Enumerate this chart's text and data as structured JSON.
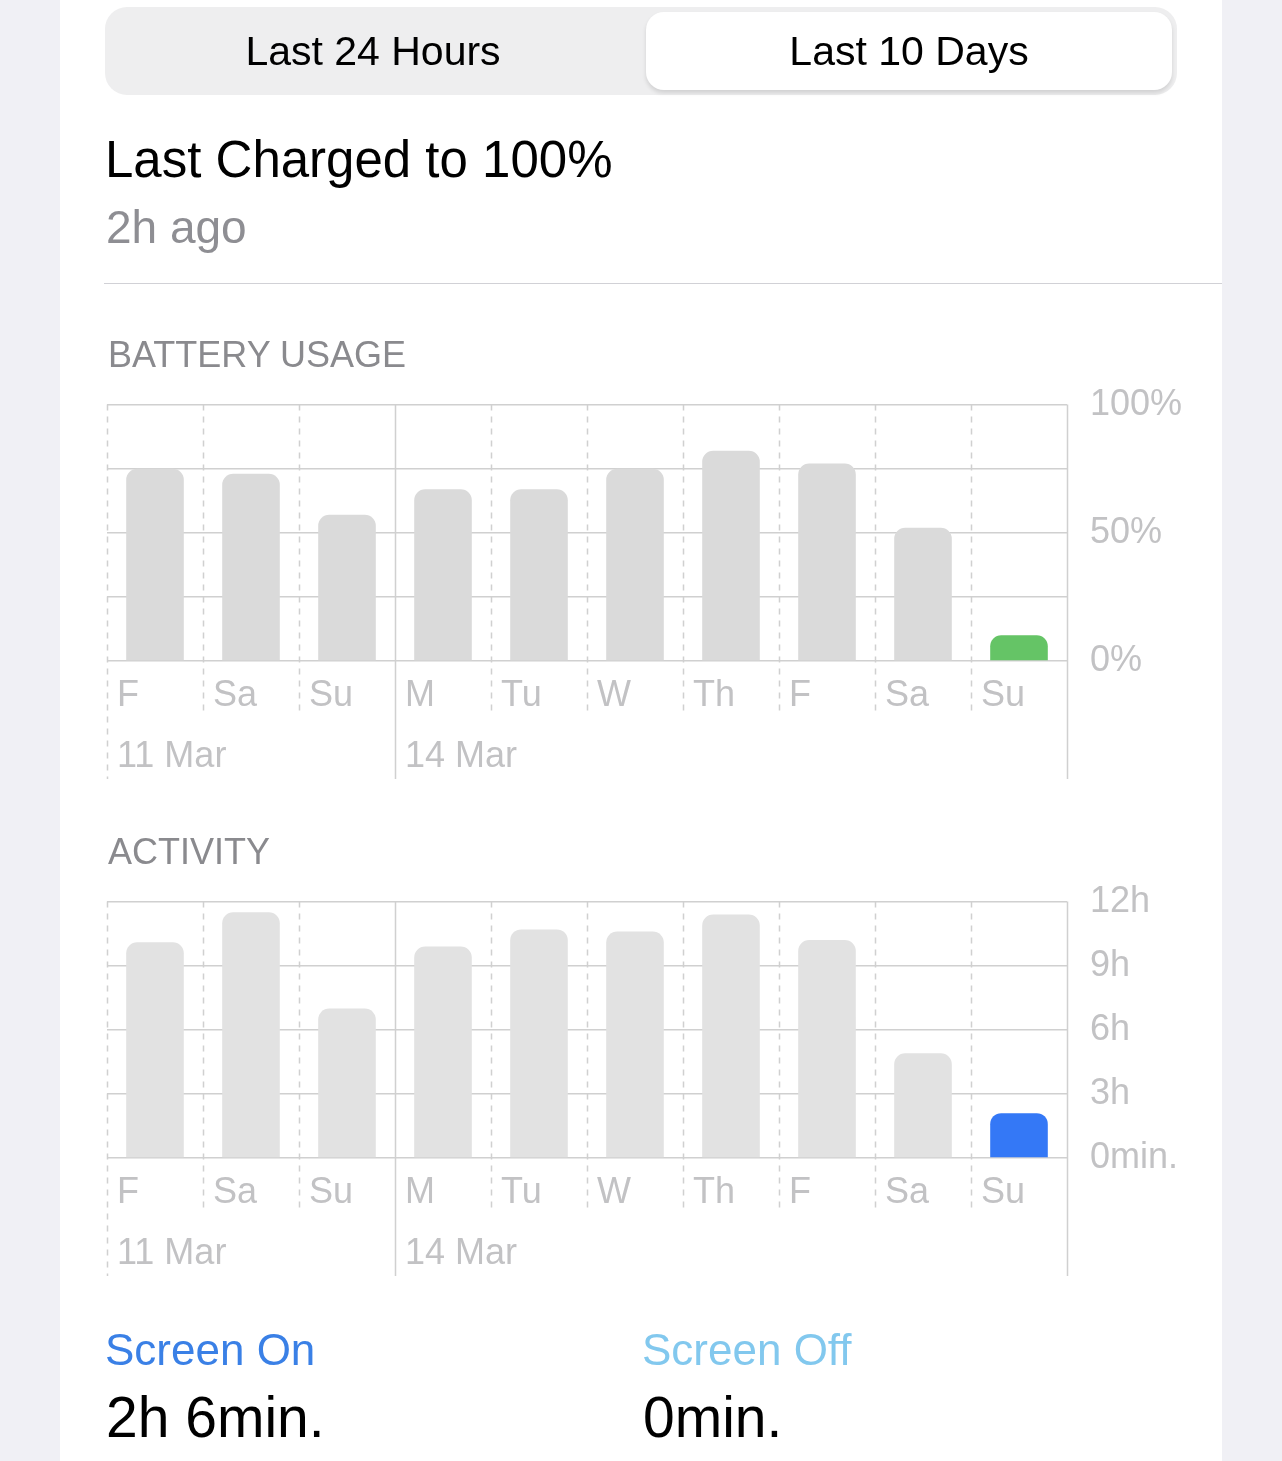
{
  "chart_data": [
    {
      "type": "other",
      "title": "Last Charged to 100%",
      "subtitle": "2h ago",
      "annotations": [
        "Last 24 Hours",
        "Last 10 Days"
      ]
    },
    {
      "type": "bar",
      "title": "BATTERY USAGE",
      "categories": [
        "F\n11 Mar",
        "Sa",
        "Su",
        "M\n14 Mar",
        "Tu",
        "W",
        "Th",
        "F",
        "Sa",
        "Su"
      ],
      "values": [
        75,
        73,
        57,
        67,
        67,
        75,
        82,
        77,
        52,
        10
      ],
      "colors": [
        "#dadada",
        "#dadada",
        "#dadada",
        "#dadada",
        "#dadada",
        "#dadada",
        "#dadada",
        "#dadada",
        "#dadada",
        "#65c466"
      ],
      "ylim": [
        0,
        100
      ],
      "yticks": [
        {
          "value": 0,
          "label": "0%"
        },
        {
          "value": 25,
          "label": null
        },
        {
          "value": 50,
          "label": "50%"
        },
        {
          "value": 75,
          "label": null
        },
        {
          "value": 100,
          "label": "100%"
        }
      ],
      "grid": true
    },
    {
      "type": "bar",
      "title": "ACTIVITY",
      "categories": [
        "F\n11 Mar",
        "Sa",
        "Su",
        "M\n14 Mar",
        "Tu",
        "W",
        "Th",
        "F",
        "Sa",
        "Su"
      ],
      "values": [
        10.1,
        11.5,
        7,
        9.9,
        10.7,
        10.6,
        11.4,
        10.2,
        4.9,
        2.1
      ],
      "colors": [
        "#e2e2e2",
        "#e2e2e2",
        "#e2e2e2",
        "#e2e2e2",
        "#e2e2e2",
        "#e2e2e2",
        "#e2e2e2",
        "#e2e2e2",
        "#e2e2e2",
        "#3478f6"
      ],
      "ylim": [
        0,
        12
      ],
      "yticks": [
        {
          "value": 0,
          "label": "0min."
        },
        {
          "value": 3,
          "label": "3h"
        },
        {
          "value": 6,
          "label": "6h"
        },
        {
          "value": 9,
          "label": "9h"
        },
        {
          "value": 12,
          "label": "12h"
        }
      ],
      "grid": true
    },
    {
      "type": "other",
      "annotations": [
        "Screen On",
        "2h 6min.",
        "Screen Off",
        "0min."
      ]
    }
  ]
}
